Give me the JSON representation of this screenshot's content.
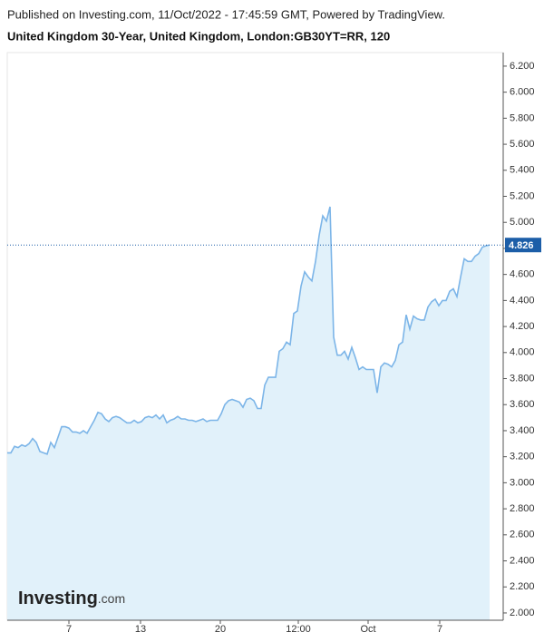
{
  "chart_data": {
    "type": "area",
    "subtitle": "Published on Investing.com, 11/Oct/2022 - 17:45:59 GMT, Powered by TradingView.",
    "title": "United Kingdom 30-Year, United Kingdom, London:GB30YT=RR, 120",
    "watermark": "Investing",
    "watermark_suffix": ".com",
    "color": "#7cb5e8",
    "fill": "#e1f1fa",
    "last_color": "#1c5ea8",
    "values": [
      3.23,
      3.23,
      3.28,
      3.27,
      3.29,
      3.28,
      3.3,
      3.34,
      3.31,
      3.24,
      3.23,
      3.22,
      3.31,
      3.27,
      3.35,
      3.43,
      3.43,
      3.42,
      3.39,
      3.39,
      3.38,
      3.4,
      3.38,
      3.43,
      3.48,
      3.54,
      3.53,
      3.49,
      3.47,
      3.5,
      3.51,
      3.5,
      3.48,
      3.46,
      3.46,
      3.48,
      3.46,
      3.47,
      3.5,
      3.51,
      3.5,
      3.52,
      3.49,
      3.52,
      3.46,
      3.48,
      3.49,
      3.51,
      3.49,
      3.49,
      3.48,
      3.48,
      3.47,
      3.48,
      3.49,
      3.47,
      3.48,
      3.48,
      3.48,
      3.53,
      3.6,
      3.63,
      3.64,
      3.63,
      3.62,
      3.58,
      3.64,
      3.65,
      3.63,
      3.57,
      3.57,
      3.75,
      3.81,
      3.81,
      3.81,
      4.01,
      4.03,
      4.08,
      4.06,
      4.3,
      4.32,
      4.51,
      4.62,
      4.58,
      4.55,
      4.7,
      4.9,
      5.05,
      5.01,
      5.12,
      4.12,
      3.98,
      3.98,
      4.01,
      3.95,
      4.04,
      3.96,
      3.87,
      3.89,
      3.87,
      3.87,
      3.87,
      3.69,
      3.89,
      3.92,
      3.91,
      3.89,
      3.94,
      4.06,
      4.08,
      4.29,
      4.18,
      4.28,
      4.26,
      4.25,
      4.25,
      4.35,
      4.39,
      4.41,
      4.36,
      4.4,
      4.4,
      4.47,
      4.49,
      4.43,
      4.58,
      4.72,
      4.7,
      4.7,
      4.74,
      4.76,
      4.81,
      4.82,
      4.826
    ],
    "xlim": [
      0,
      136.75
    ],
    "xticks": [
      {
        "value": 17,
        "label": "7"
      },
      {
        "value": 36.75,
        "label": "13"
      },
      {
        "value": 58.75,
        "label": "20"
      },
      {
        "value": 80.25,
        "label": "12:00"
      },
      {
        "value": 99.5,
        "label": "Oct"
      },
      {
        "value": 119.25,
        "label": "7"
      }
    ],
    "ylim": [
      1.944,
      6.304
    ],
    "yticks": [
      {
        "value": 2,
        "label": "2.000"
      },
      {
        "value": 2.2,
        "label": "2.200"
      },
      {
        "value": 2.4,
        "label": "2.400"
      },
      {
        "value": 2.6,
        "label": "2.600"
      },
      {
        "value": 2.8,
        "label": "2.800"
      },
      {
        "value": 3,
        "label": "3.000"
      },
      {
        "value": 3.2,
        "label": "3.200"
      },
      {
        "value": 3.4,
        "label": "3.400"
      },
      {
        "value": 3.6,
        "label": "3.600"
      },
      {
        "value": 3.8,
        "label": "3.800"
      },
      {
        "value": 4,
        "label": "4.000"
      },
      {
        "value": 4.2,
        "label": "4.200"
      },
      {
        "value": 4.4,
        "label": "4.400"
      },
      {
        "value": 4.6,
        "label": "4.600"
      },
      {
        "value": 4.8,
        "label": "4.800"
      },
      {
        "value": 5,
        "label": "5.000"
      },
      {
        "value": 5.2,
        "label": "5.200"
      },
      {
        "value": 5.4,
        "label": "5.400"
      },
      {
        "value": 5.6,
        "label": "5.600"
      },
      {
        "value": 5.8,
        "label": "5.800"
      },
      {
        "value": 6,
        "label": "6.000"
      },
      {
        "value": 6.2,
        "label": "6.200"
      }
    ]
  }
}
